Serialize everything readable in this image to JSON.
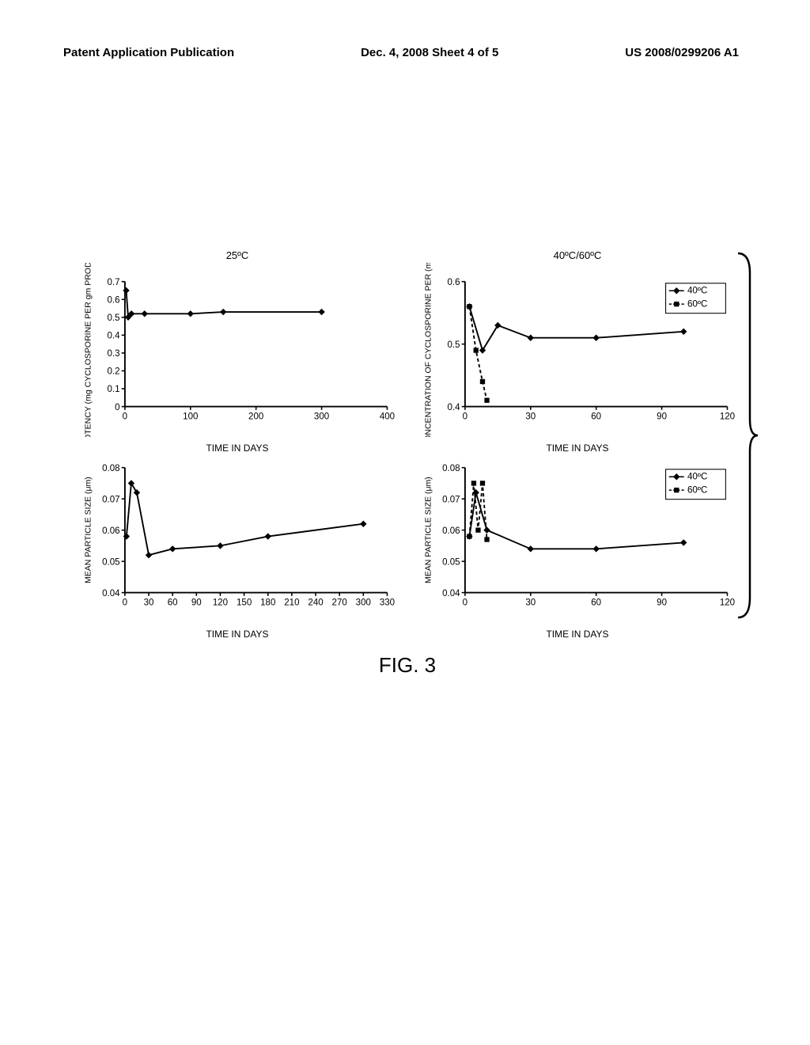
{
  "header": {
    "left": "Patent Application Publication",
    "center": "Dec. 4, 2008  Sheet 4 of 5",
    "right": "US 2008/0299206 A1"
  },
  "figure_label": "FIG. 3",
  "colors": {
    "line": "#000000",
    "axis": "#000000",
    "background": "#ffffff"
  },
  "charts": {
    "topleft": {
      "title": "25ºC",
      "ylabel": "POTENCY (mg CYCLOSPORINE PER gm PRODUCT)",
      "xlabel": "TIME IN DAYS",
      "xlim": [
        0,
        400
      ],
      "ylim": [
        0,
        0.7
      ],
      "xticks": [
        0,
        100,
        200,
        300,
        400
      ],
      "yticks": [
        0,
        0.1,
        0.2,
        0.3,
        0.4,
        0.5,
        0.6,
        0.7
      ],
      "series": [
        {
          "name": "25C",
          "style": "solid",
          "marker": "diamond",
          "points": [
            [
              2,
              0.65
            ],
            [
              5,
              0.5
            ],
            [
              10,
              0.52
            ],
            [
              30,
              0.52
            ],
            [
              100,
              0.52
            ],
            [
              150,
              0.53
            ],
            [
              300,
              0.53
            ]
          ]
        }
      ]
    },
    "topright": {
      "title": "40ºC/60ºC",
      "ylabel": "CONCENTRATION OF CYCLOSPORINE PER (mg/gm)",
      "xlabel": "TIME IN DAYS",
      "xlim": [
        0,
        120
      ],
      "ylim": [
        0.4,
        0.6
      ],
      "xticks": [
        0,
        30,
        60,
        90,
        120
      ],
      "yticks": [
        0.4,
        0.5,
        0.6
      ],
      "legend": [
        {
          "label": "40ºC",
          "style": "solid",
          "marker": "diamond"
        },
        {
          "label": "60ºC",
          "style": "dashed",
          "marker": "square"
        }
      ],
      "series": [
        {
          "name": "40C",
          "style": "solid",
          "marker": "diamond",
          "points": [
            [
              2,
              0.56
            ],
            [
              8,
              0.49
            ],
            [
              15,
              0.53
            ],
            [
              30,
              0.51
            ],
            [
              60,
              0.51
            ],
            [
              100,
              0.52
            ]
          ]
        },
        {
          "name": "60C",
          "style": "dashed",
          "marker": "square",
          "points": [
            [
              2,
              0.56
            ],
            [
              5,
              0.49
            ],
            [
              8,
              0.44
            ],
            [
              10,
              0.41
            ]
          ]
        }
      ]
    },
    "bottomleft": {
      "title": "",
      "ylabel": "MEAN PARTICLE SIZE (μm)",
      "xlabel": "TIME IN DAYS",
      "xlim": [
        0,
        330
      ],
      "ylim": [
        0.04,
        0.08
      ],
      "xticks": [
        0,
        30,
        60,
        90,
        120,
        150,
        180,
        210,
        240,
        270,
        300,
        330
      ],
      "yticks": [
        0.04,
        0.05,
        0.06,
        0.07,
        0.08
      ],
      "series": [
        {
          "name": "25C",
          "style": "solid",
          "marker": "diamond",
          "points": [
            [
              2,
              0.058
            ],
            [
              8,
              0.075
            ],
            [
              15,
              0.072
            ],
            [
              30,
              0.052
            ],
            [
              60,
              0.054
            ],
            [
              120,
              0.055
            ],
            [
              180,
              0.058
            ],
            [
              300,
              0.062
            ]
          ]
        }
      ]
    },
    "bottomright": {
      "title": "",
      "ylabel": "MEAN PARTICLE SIZE (μm)",
      "xlabel": "TIME IN DAYS",
      "xlim": [
        0,
        120
      ],
      "ylim": [
        0.04,
        0.08
      ],
      "xticks": [
        0,
        30,
        60,
        90,
        120
      ],
      "yticks": [
        0.04,
        0.05,
        0.06,
        0.07,
        0.08
      ],
      "legend": [
        {
          "label": "40ºC",
          "style": "solid",
          "marker": "diamond"
        },
        {
          "label": "60ºC",
          "style": "dashed",
          "marker": "square"
        }
      ],
      "series": [
        {
          "name": "40C",
          "style": "solid",
          "marker": "diamond",
          "points": [
            [
              2,
              0.058
            ],
            [
              5,
              0.072
            ],
            [
              10,
              0.06
            ],
            [
              30,
              0.054
            ],
            [
              60,
              0.054
            ],
            [
              100,
              0.056
            ]
          ]
        },
        {
          "name": "60C",
          "style": "dashed",
          "marker": "square",
          "points": [
            [
              2,
              0.058
            ],
            [
              4,
              0.075
            ],
            [
              6,
              0.06
            ],
            [
              8,
              0.075
            ],
            [
              10,
              0.057
            ]
          ]
        }
      ]
    }
  }
}
